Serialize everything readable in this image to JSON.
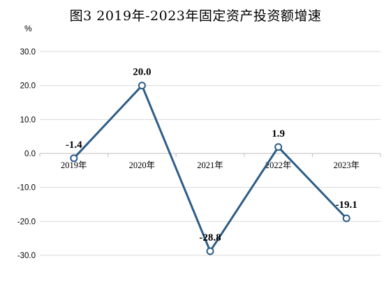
{
  "chart_data": {
    "type": "line",
    "title": "图3 2019年-2023年固定资产投资额增速",
    "ylabel": "%",
    "categories": [
      "2019年",
      "2020年",
      "2021年",
      "2022年",
      "2023年"
    ],
    "series": [
      {
        "values": [
          -1.4,
          20.0,
          -28.8,
          1.9,
          -19.1
        ]
      }
    ],
    "data_labels": [
      "-1.4",
      "20.0",
      "-28.8",
      "1.9",
      "-19.1"
    ],
    "ylim": [
      -30,
      30
    ],
    "yticks": [
      "30.0",
      "20.0",
      "10.0",
      "0.0",
      "-10.0",
      "-20.0",
      "-30.0"
    ],
    "grid": true,
    "colors": {
      "line": "#2E5D87",
      "marker_fill": "#ffffff",
      "grid": "#d9d9d9",
      "axis": "#bfbfbf"
    }
  }
}
